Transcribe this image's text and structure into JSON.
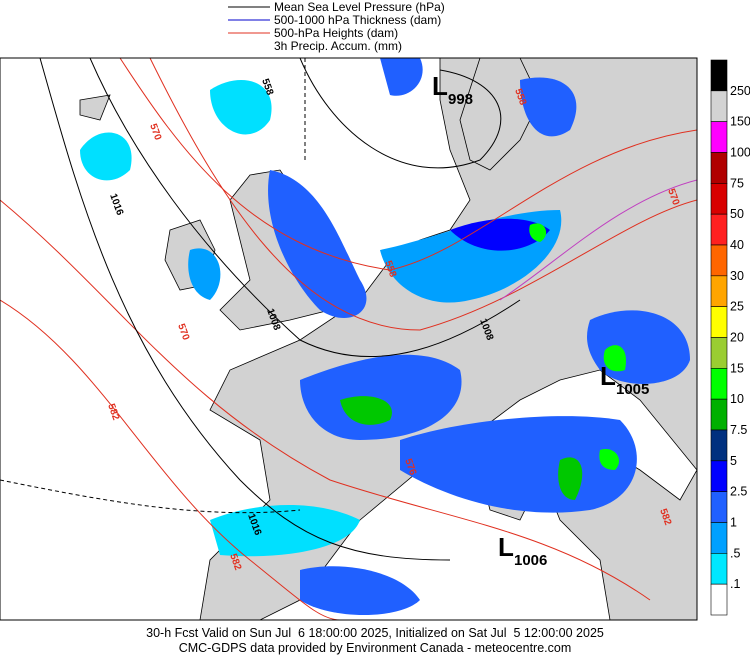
{
  "header": {
    "legend": [
      "Mean Sea Level Pressure (hPa)",
      "500-1000 hPa Thickness (dam)",
      "500-hPa Heights (dam)",
      "3h Precip. Accum. (mm)"
    ]
  },
  "map": {
    "contour_labels": [
      "1016",
      "1008",
      "1008",
      "1016",
      "570",
      "582",
      "558",
      "570",
      "558",
      "582",
      "570",
      "576",
      "582",
      "558"
    ],
    "lows": [
      {
        "symbol": "L",
        "value": "998"
      },
      {
        "symbol": "L",
        "value": "1005"
      },
      {
        "symbol": "L",
        "value": "1006"
      }
    ]
  },
  "colorbar": {
    "labels": [
      "250",
      "150",
      "100",
      "75",
      "50",
      "40",
      "30",
      "25",
      "20",
      "15",
      "10",
      "7.5",
      "5",
      "2.5",
      "1",
      ".5",
      ".1"
    ],
    "colors": [
      "#000000",
      "#d3d3d3",
      "#ff00ff",
      "#b00000",
      "#d80000",
      "#ff2020",
      "#ff6600",
      "#ffa500",
      "#ffff00",
      "#9acd32",
      "#00ff00",
      "#00b000",
      "#00307f",
      "#0000ff",
      "#2060ff",
      "#00a0ff",
      "#00e8ff",
      "#ffffff"
    ]
  },
  "footer": {
    "lines": [
      "30-h Fcst Valid on Sun Jul  6 18:00:00 2025, Initialized on Sat Jul  5 12:00:00 2025",
      "CMC-GDPS data provided by Environment Canada - meteocentre.com"
    ]
  }
}
